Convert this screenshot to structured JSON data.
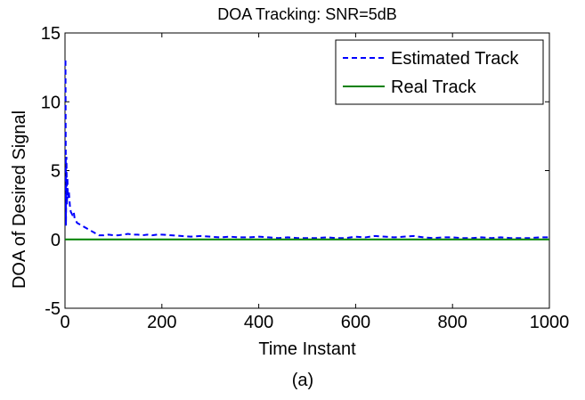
{
  "chart_data": {
    "type": "line",
    "title": "DOA Tracking: SNR=5dB",
    "xlabel": "Time Instant",
    "ylabel": "DOA of Desired Signal",
    "caption": "(a)",
    "xlim": [
      0,
      1000
    ],
    "ylim": [
      -5,
      15
    ],
    "xticks": [
      0,
      200,
      400,
      600,
      800,
      1000
    ],
    "yticks": [
      -5,
      0,
      5,
      10,
      15
    ],
    "grid": false,
    "legend_position": "top-right",
    "series": [
      {
        "name": "Estimated Track",
        "color": "#0000ff",
        "style": "dashed",
        "x": [
          1,
          2,
          3,
          4,
          5,
          6,
          8,
          10,
          12,
          15,
          18,
          20,
          25,
          30,
          35,
          40,
          45,
          50,
          60,
          70,
          80,
          90,
          100,
          110,
          120,
          130,
          140,
          150,
          160,
          170,
          180,
          190,
          200,
          220,
          240,
          260,
          280,
          300,
          320,
          340,
          360,
          380,
          400,
          420,
          440,
          460,
          480,
          500,
          520,
          540,
          560,
          580,
          600,
          620,
          640,
          660,
          680,
          700,
          720,
          740,
          760,
          780,
          800,
          820,
          840,
          860,
          880,
          900,
          920,
          940,
          960,
          980,
          1000
        ],
        "y": [
          13.0,
          1.0,
          6.0,
          2.5,
          4.5,
          3.0,
          3.5,
          2.5,
          2.0,
          1.8,
          2.0,
          1.5,
          1.2,
          1.1,
          1.0,
          0.9,
          0.8,
          0.7,
          0.5,
          0.3,
          0.3,
          0.35,
          0.3,
          0.3,
          0.35,
          0.4,
          0.35,
          0.35,
          0.3,
          0.35,
          0.3,
          0.35,
          0.35,
          0.3,
          0.25,
          0.2,
          0.25,
          0.2,
          0.15,
          0.2,
          0.15,
          0.15,
          0.2,
          0.15,
          0.1,
          0.15,
          0.1,
          0.1,
          0.1,
          0.15,
          0.1,
          0.1,
          0.2,
          0.15,
          0.25,
          0.2,
          0.15,
          0.2,
          0.25,
          0.15,
          0.1,
          0.15,
          0.15,
          0.1,
          0.1,
          0.15,
          0.1,
          0.15,
          0.1,
          0.1,
          0.1,
          0.15,
          0.15
        ]
      },
      {
        "name": "Real Track",
        "color": "#008000",
        "style": "solid",
        "x": [
          0,
          1000
        ],
        "y": [
          0,
          0
        ]
      }
    ]
  }
}
